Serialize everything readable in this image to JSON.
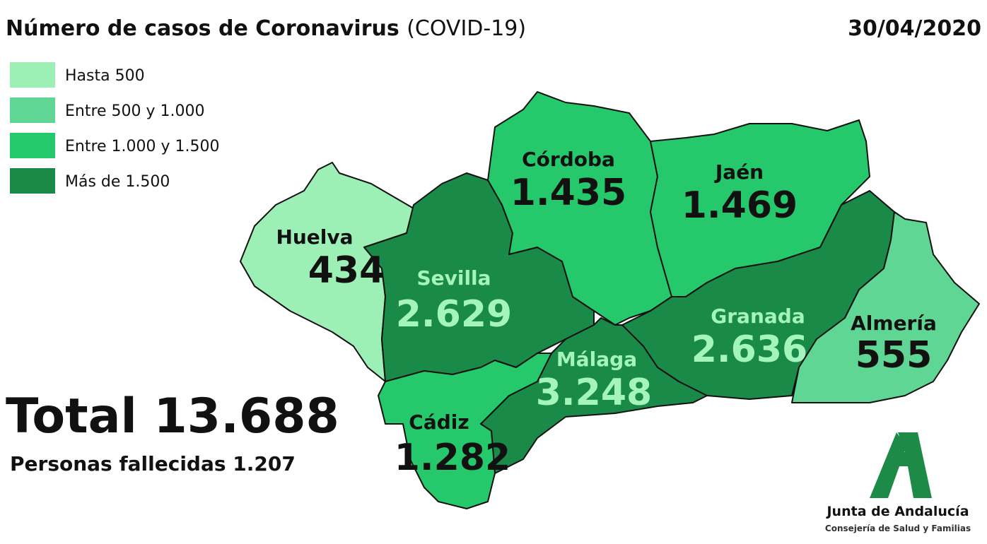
{
  "header": {
    "title": "Número de casos de Coronavirus",
    "subtitle": "(COVID-19)",
    "date": "30/04/2020"
  },
  "legend": {
    "items": [
      {
        "label": "Hasta 500",
        "color": "#9cf0b6"
      },
      {
        "label": "Entre 500 y 1.000",
        "color": "#5fd693"
      },
      {
        "label": "Entre 1.000 y 1.500",
        "color": "#25c96b"
      },
      {
        "label": "Más de 1.500",
        "color": "#1a8a49"
      }
    ]
  },
  "provinces": [
    {
      "name": "Huelva",
      "cases": "434",
      "color": "#9cf0b6",
      "text_color": "#111111"
    },
    {
      "name": "Sevilla",
      "cases": "2.629",
      "color": "#1a8a49",
      "text_color": "#a3f5bd"
    },
    {
      "name": "Córdoba",
      "cases": "1.435",
      "color": "#25c96b",
      "text_color": "#111111"
    },
    {
      "name": "Jaén",
      "cases": "1.469",
      "color": "#25c96b",
      "text_color": "#111111"
    },
    {
      "name": "Granada",
      "cases": "2.636",
      "color": "#1a8a49",
      "text_color": "#a3f5bd"
    },
    {
      "name": "Almería",
      "cases": "555",
      "color": "#5fd693",
      "text_color": "#111111"
    },
    {
      "name": "Málaga",
      "cases": "3.248",
      "color": "#1a8a49",
      "text_color": "#a3f5bd"
    },
    {
      "name": "Cádiz",
      "cases": "1.282",
      "color": "#25c96b",
      "text_color": "#111111"
    }
  ],
  "total": {
    "label": "Total",
    "value": "13.688"
  },
  "deaths": {
    "label": "Personas fallecidas",
    "value": "1.207"
  },
  "logo": {
    "name": "Junta de Andalucía",
    "department": "Consejería de Salud y Familias"
  }
}
